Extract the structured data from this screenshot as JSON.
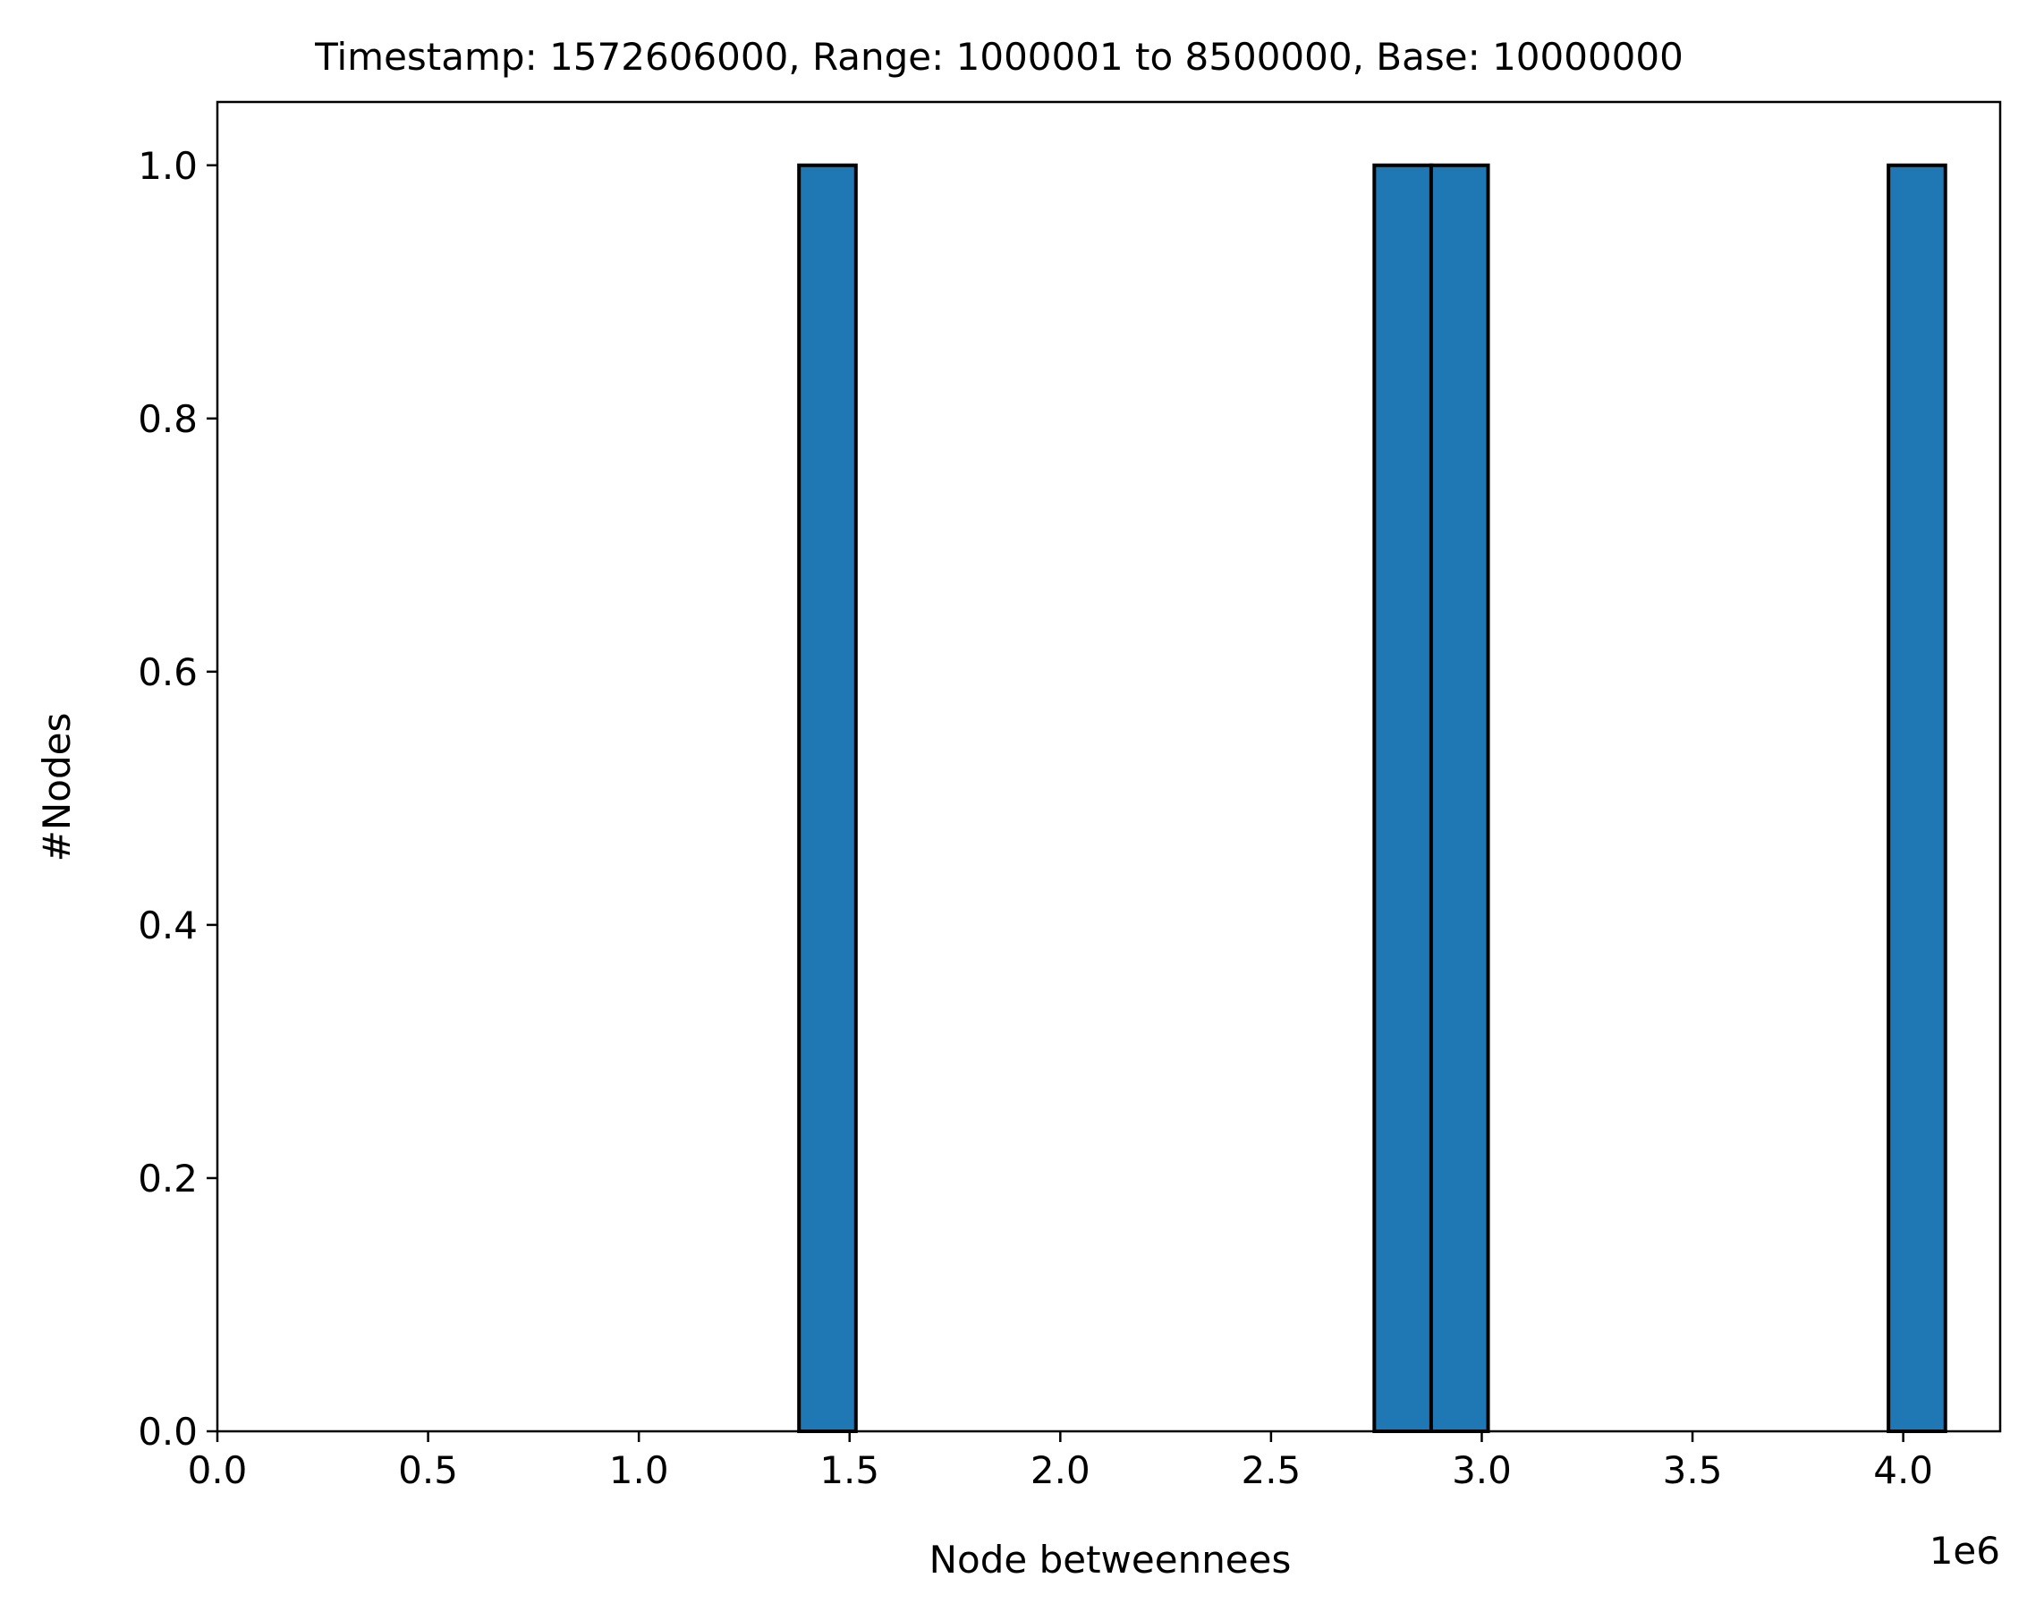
{
  "chart_data": {
    "type": "bar",
    "title": "Timestamp: 1572606000, Range: 1000001 to 8500000, Base: 10000000",
    "xlabel": "Node betweennees",
    "ylabel": "#Nodes",
    "x_offset_label": "1e6",
    "xlim": [
      0,
      4.23
    ],
    "ylim": [
      0,
      1.05
    ],
    "x_ticks": [
      0.0,
      0.5,
      1.0,
      1.5,
      2.0,
      2.5,
      3.0,
      3.5,
      4.0
    ],
    "x_tick_labels": [
      "0.0",
      "0.5",
      "1.0",
      "1.5",
      "2.0",
      "2.5",
      "3.0",
      "3.5",
      "4.0"
    ],
    "y_ticks": [
      0.0,
      0.2,
      0.4,
      0.6,
      0.8,
      1.0
    ],
    "y_tick_labels": [
      "0.0",
      "0.2",
      "0.4",
      "0.6",
      "0.8",
      "1.0"
    ],
    "grid": false,
    "bins": [
      {
        "x0": 1.38,
        "x1": 1.515,
        "count": 1
      },
      {
        "x0": 2.745,
        "x1": 2.88,
        "count": 1
      },
      {
        "x0": 2.88,
        "x1": 3.015,
        "count": 1
      },
      {
        "x0": 3.965,
        "x1": 4.1,
        "count": 1
      }
    ],
    "colors": {
      "bar_fill": "#1f77b4",
      "bar_edge": "#000000",
      "axis": "#000000"
    }
  }
}
